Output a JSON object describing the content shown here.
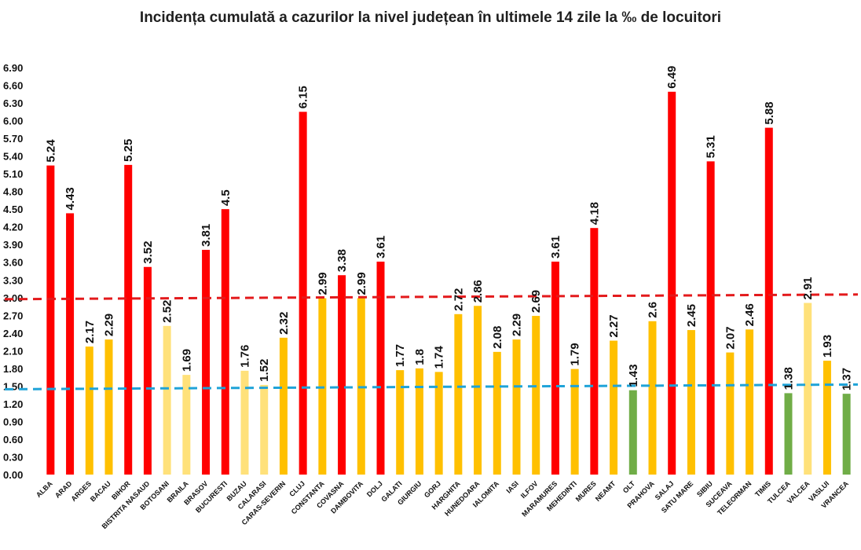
{
  "chart_data": {
    "type": "bar",
    "title": "Incidența cumulată a cazurilor la nivel județean în ultimele 14 zile la ‰ de locuitori",
    "xlabel": "",
    "ylabel": "",
    "ylim": [
      0,
      6.9
    ],
    "yticks": [
      "0.00",
      "0.30",
      "0.60",
      "0.90",
      "1.20",
      "1.50",
      "1.80",
      "2.10",
      "2.40",
      "2.70",
      "3.00",
      "3.30",
      "3.60",
      "3.90",
      "4.20",
      "4.50",
      "4.80",
      "5.10",
      "5.40",
      "5.70",
      "6.00",
      "6.30",
      "6.60",
      "6.90"
    ],
    "grid": false,
    "legend": "none",
    "categories": [
      "ALBA",
      "ARAD",
      "ARGES",
      "BACAU",
      "BIHOR",
      "BISTRITA NASAUD",
      "BOTOSANI",
      "BRAILA",
      "BRASOV",
      "BUCURESTI",
      "BUZAU",
      "CALARASI",
      "CARAS-SEVERIN",
      "CLUJ",
      "CONSTANTA",
      "COVASNA",
      "DAMBOVITA",
      "DOLJ",
      "GALATI",
      "GIURGIU",
      "GORJ",
      "HARGHITA",
      "HUNEDOARA",
      "IALOMITA",
      "IASI",
      "ILFOV",
      "MARAMURES",
      "MEHEDINTI",
      "MURES",
      "NEAMT",
      "OLT",
      "PRAHOVA",
      "SALAJ",
      "SATU MARE",
      "SIBIU",
      "SUCEAVA",
      "TELEORMAN",
      "TIMIS",
      "TULCEA",
      "VALCEA",
      "VASLUI",
      "VRANCEA"
    ],
    "values": [
      5.24,
      4.43,
      2.17,
      2.29,
      5.25,
      3.52,
      2.52,
      1.69,
      3.81,
      4.5,
      1.76,
      1.52,
      2.32,
      6.15,
      2.99,
      3.38,
      2.99,
      3.61,
      1.77,
      1.8,
      1.74,
      2.72,
      2.86,
      2.08,
      2.29,
      2.69,
      3.61,
      1.79,
      4.18,
      2.27,
      1.43,
      2.6,
      6.49,
      2.45,
      5.31,
      2.07,
      2.46,
      5.88,
      1.38,
      2.91,
      1.93,
      1.37
    ],
    "value_labels": [
      "5.24",
      "4.43",
      "2.17",
      "2.29",
      "5.25",
      "3.52",
      "2.52",
      "1.69",
      "3.81",
      "4.5",
      "1.76",
      "1.52",
      "2.32",
      "6.15",
      "2.99",
      "3.38",
      "2.99",
      "3.61",
      "1.77",
      "1.8",
      "1.74",
      "2.72",
      "2.86",
      "2.08",
      "2.29",
      "2.69",
      "3.61",
      "1.79",
      "4.18",
      "2.27",
      "1.43",
      "2.6",
      "6.49",
      "2.45",
      "5.31",
      "2.07",
      "2.46",
      "5.88",
      "1.38",
      "2.91",
      "1.93",
      "1.37"
    ],
    "bar_colors": [
      "#ff0000",
      "#ff0000",
      "#ffc000",
      "#ffc000",
      "#ff0000",
      "#ff0000",
      "#ffe17a",
      "#ffe17a",
      "#ff0000",
      "#ff0000",
      "#ffe17a",
      "#ffe17a",
      "#ffc000",
      "#ff0000",
      "#ffc000",
      "#ff0000",
      "#ffc000",
      "#ff0000",
      "#ffc000",
      "#ffc000",
      "#ffc000",
      "#ffc000",
      "#ffc000",
      "#ffc000",
      "#ffc000",
      "#ffc000",
      "#ff0000",
      "#ffc000",
      "#ff0000",
      "#ffc000",
      "#70ad47",
      "#ffc000",
      "#ff0000",
      "#ffc000",
      "#ff0000",
      "#ffc000",
      "#ffc000",
      "#ff0000",
      "#70ad47",
      "#ffe17a",
      "#ffc000",
      "#70ad47"
    ],
    "reference_lines": [
      {
        "value": 3.0,
        "color": "#e31a1c",
        "style": "dashed"
      },
      {
        "value": 1.5,
        "color": "#1fa3d8",
        "style": "dashed"
      }
    ]
  }
}
